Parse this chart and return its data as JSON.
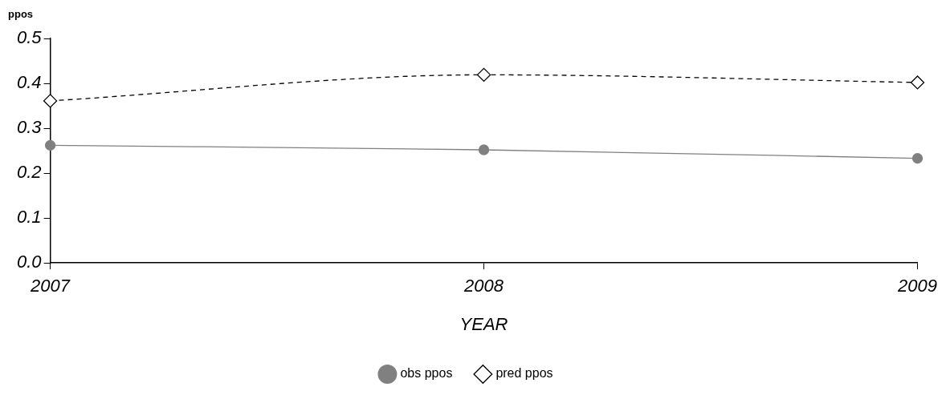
{
  "chart_data": {
    "type": "line",
    "xlabel": "YEAR",
    "ylabel": "ppos",
    "x": [
      2007,
      2008,
      2009
    ],
    "series": [
      {
        "name": "obs ppos",
        "color": "#808080",
        "values": [
          0.262,
          0.252,
          0.233
        ],
        "marker": "circle",
        "line_style": "solid"
      },
      {
        "name": "pred ppos",
        "color": "#000000",
        "values": [
          0.361,
          0.419,
          0.402
        ],
        "marker": "diamond",
        "line_style": "dashed"
      }
    ],
    "xlim": [
      2007,
      2009
    ],
    "xticks": [
      2007,
      2008,
      2009
    ],
    "ylim": [
      0,
      0.5
    ],
    "yticks": [
      {
        "value": 0,
        "label": "0.0"
      },
      0.1,
      0.2,
      0.3,
      0.4,
      0.5
    ],
    "grid": false,
    "legend": "bottom"
  }
}
